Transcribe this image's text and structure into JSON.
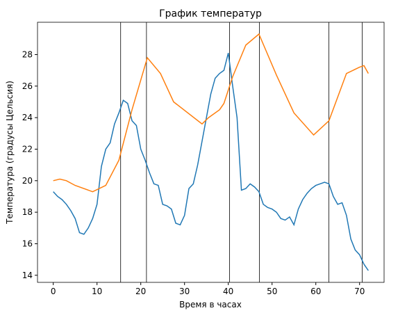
{
  "chart_data": {
    "type": "line",
    "title": "График температур",
    "xlabel": "Время в часах",
    "ylabel": "Температура (градусы Цельсия)",
    "xlim": [
      -3.6,
      75.6
    ],
    "ylim": [
      13.55,
      30.05
    ],
    "xticks": [
      0,
      10,
      20,
      30,
      40,
      50,
      60,
      70
    ],
    "yticks": [
      14,
      16,
      18,
      20,
      22,
      24,
      26,
      28
    ],
    "vlines": [
      15.4,
      21.3,
      40.3,
      47.1,
      63.0,
      70.6
    ],
    "vline_color": "#000000",
    "series": [
      {
        "name": null,
        "color": "#1f77b4",
        "x": [
          0,
          1,
          2,
          3,
          4,
          5,
          6,
          7,
          8,
          9,
          10,
          11,
          12,
          13,
          14,
          15,
          16,
          17,
          18,
          19,
          20,
          21,
          22,
          23,
          24,
          25,
          26,
          27,
          28,
          29,
          30,
          31,
          32,
          33,
          34,
          35,
          36,
          37,
          38,
          39,
          40,
          41,
          42,
          43,
          44,
          45,
          46,
          47,
          48,
          49,
          50,
          51,
          52,
          53,
          54,
          55,
          56,
          57,
          58,
          59,
          60,
          61,
          62,
          63,
          64,
          65,
          66,
          67,
          68,
          69,
          70,
          71,
          72
        ],
        "values": [
          19.3,
          19.0,
          18.8,
          18.5,
          18.1,
          17.6,
          16.7,
          16.6,
          17.0,
          17.6,
          18.5,
          20.9,
          22.0,
          22.4,
          23.6,
          24.3,
          25.1,
          24.9,
          23.8,
          23.5,
          22.0,
          21.3,
          20.5,
          19.8,
          19.7,
          18.5,
          18.4,
          18.2,
          17.3,
          17.2,
          17.8,
          19.5,
          19.8,
          21.0,
          22.5,
          24.0,
          25.5,
          26.5,
          26.8,
          27.0,
          28.1,
          26.0,
          24.0,
          19.4,
          19.5,
          19.8,
          19.6,
          19.3,
          18.5,
          18.3,
          18.2,
          18.0,
          17.6,
          17.5,
          17.7,
          17.2,
          18.2,
          18.8,
          19.2,
          19.5,
          19.7,
          19.8,
          19.9,
          19.8,
          19.0,
          18.5,
          18.6,
          17.8,
          16.3,
          15.6,
          15.3,
          14.7,
          14.3
        ]
      },
      {
        "name": null,
        "color": "#ff7f0e",
        "x": [
          0,
          1.5,
          3,
          5,
          9,
          12,
          15,
          18,
          21.5,
          24.5,
          27.5,
          34,
          35.5,
          38,
          39,
          41,
          44,
          47,
          51,
          55,
          59.5,
          63,
          67,
          70,
          71,
          72
        ],
        "values": [
          20.0,
          20.1,
          20.0,
          19.7,
          19.3,
          19.7,
          21.3,
          24.5,
          27.8,
          26.8,
          25.0,
          23.6,
          24.0,
          24.5,
          24.9,
          26.6,
          28.6,
          29.3,
          26.7,
          24.3,
          22.9,
          23.8,
          26.8,
          27.2,
          27.3,
          26.8
        ]
      }
    ]
  }
}
